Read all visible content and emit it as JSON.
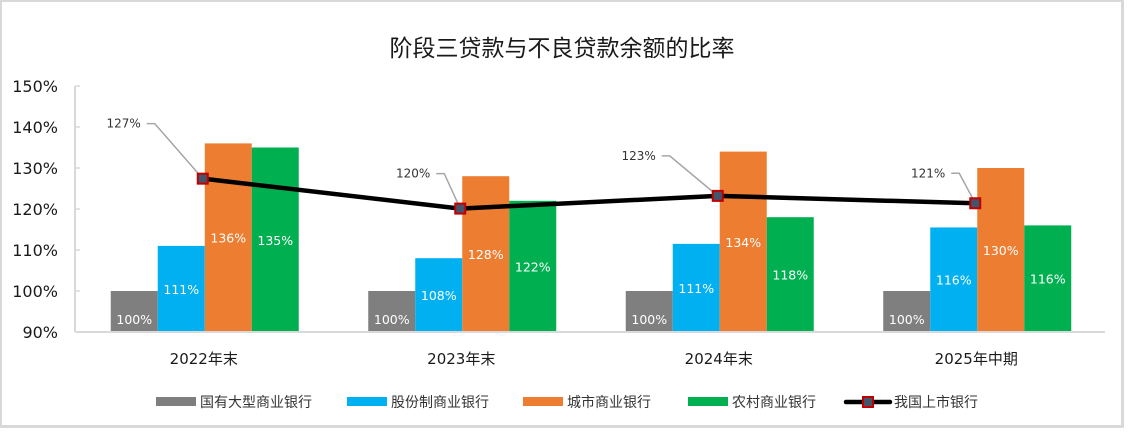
{
  "chart_data": {
    "type": "bar",
    "title": "阶段三贷款与不良贷款余额的比率",
    "xlabel": "",
    "ylabel": "",
    "ylim": [
      0.9,
      1.5
    ],
    "yticks": [
      "90%",
      "100%",
      "110%",
      "120%",
      "130%",
      "140%",
      "150%"
    ],
    "ytick_values": [
      0.9,
      1.0,
      1.1,
      1.2,
      1.3,
      1.4,
      1.5
    ],
    "grid": false,
    "categories": [
      "2022年末",
      "2023年末",
      "2024年末",
      "2025年中期"
    ],
    "series": [
      {
        "name": "国有大型商业银行",
        "kind": "bar",
        "color": "#7f7f7f",
        "values": [
          1.0,
          1.0,
          1.0,
          1.0
        ],
        "labels": [
          "100%",
          "100%",
          "100%",
          "100%"
        ]
      },
      {
        "name": "股份制商业银行",
        "kind": "bar",
        "color": "#00b0f0",
        "values": [
          1.11,
          1.08,
          1.115,
          1.155
        ],
        "labels": [
          "111%",
          "108%",
          "111%",
          "116%"
        ]
      },
      {
        "name": "城市商业银行",
        "kind": "bar",
        "color": "#ed7d31",
        "values": [
          1.36,
          1.28,
          1.34,
          1.3
        ],
        "labels": [
          "136%",
          "128%",
          "134%",
          "130%"
        ]
      },
      {
        "name": "农村商业银行",
        "kind": "bar",
        "color": "#00b050",
        "values": [
          1.35,
          1.22,
          1.18,
          1.16
        ],
        "labels": [
          "135%",
          "122%",
          "118%",
          "116%"
        ]
      },
      {
        "name": "我国上市银行",
        "kind": "line",
        "color": "#000000",
        "marker_fill": "#44546a",
        "marker_edge": "#c00000",
        "values": [
          1.274,
          1.201,
          1.232,
          1.214
        ],
        "labels": [
          "127%",
          "120%",
          "123%",
          "121%"
        ]
      }
    ],
    "legend_position": "bottom"
  }
}
